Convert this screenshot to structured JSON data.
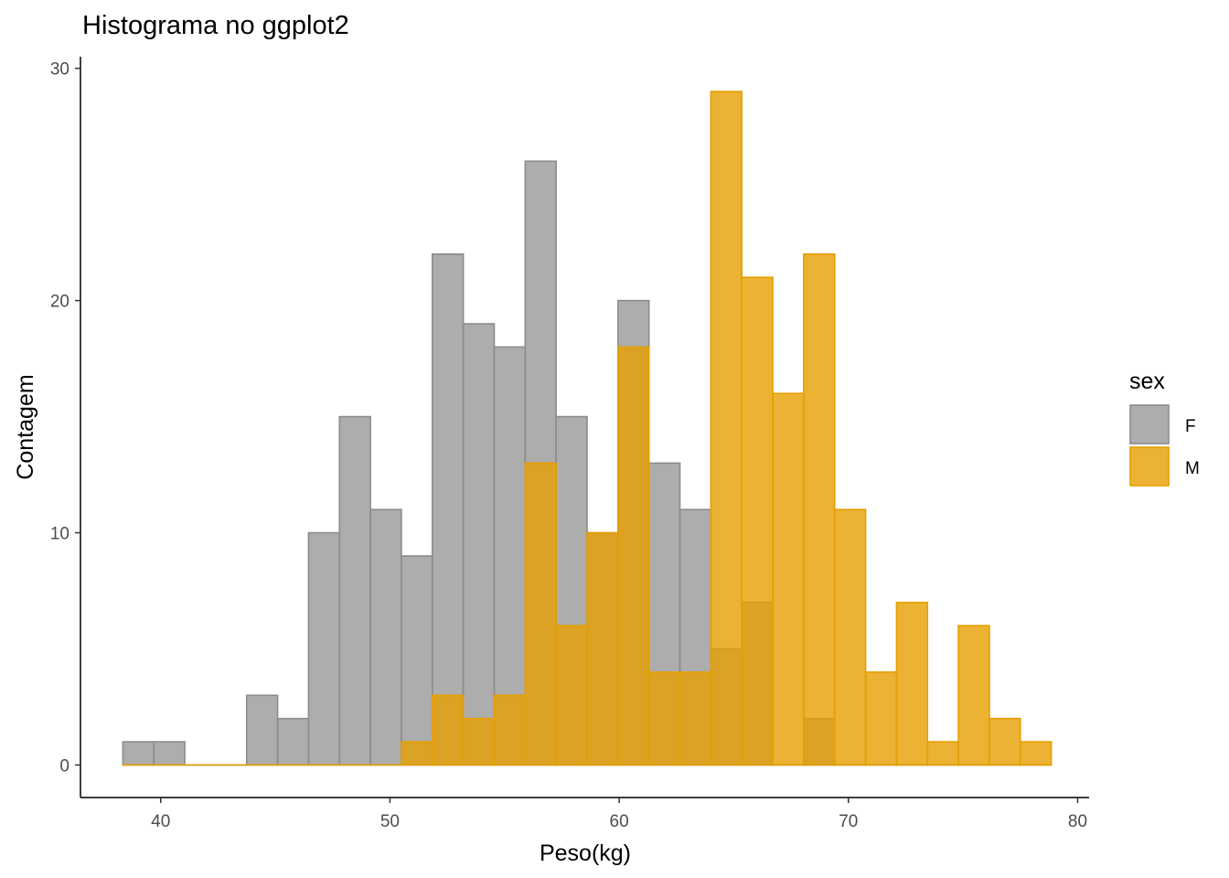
{
  "chart_data": {
    "type": "bar",
    "title": "Histograma no ggplot2",
    "xlabel": "Peso(kg)",
    "ylabel": "Contagem",
    "xlim": [
      36.5,
      80.5
    ],
    "ylim": [
      -1.4,
      30.5
    ],
    "x_ticks": [
      40,
      50,
      60,
      70,
      80
    ],
    "y_ticks": [
      0,
      10,
      20,
      30
    ],
    "bin_width": 1.35,
    "bin_start": 38.35,
    "grid": false,
    "legend": {
      "title": "sex",
      "placement": "right",
      "entries": [
        "F",
        "M"
      ]
    },
    "series": [
      {
        "name": "F",
        "fill": "#999999",
        "stroke": "#8c8c8c",
        "opacity": 0.8,
        "values": [
          1,
          1,
          0,
          0,
          3,
          2,
          10,
          15,
          11,
          9,
          22,
          19,
          18,
          26,
          15,
          10,
          20,
          13,
          11,
          5,
          7,
          0,
          2,
          0,
          0,
          0,
          0,
          0,
          0,
          0
        ]
      },
      {
        "name": "M",
        "fill": "#E69F00",
        "stroke": "#E69F00",
        "opacity": 0.8,
        "values": [
          0,
          0,
          0,
          0,
          0,
          0,
          0,
          0,
          0,
          1,
          3,
          2,
          3,
          13,
          6,
          10,
          18,
          4,
          4,
          29,
          21,
          16,
          22,
          11,
          4,
          7,
          1,
          6,
          2,
          1
        ]
      }
    ]
  }
}
